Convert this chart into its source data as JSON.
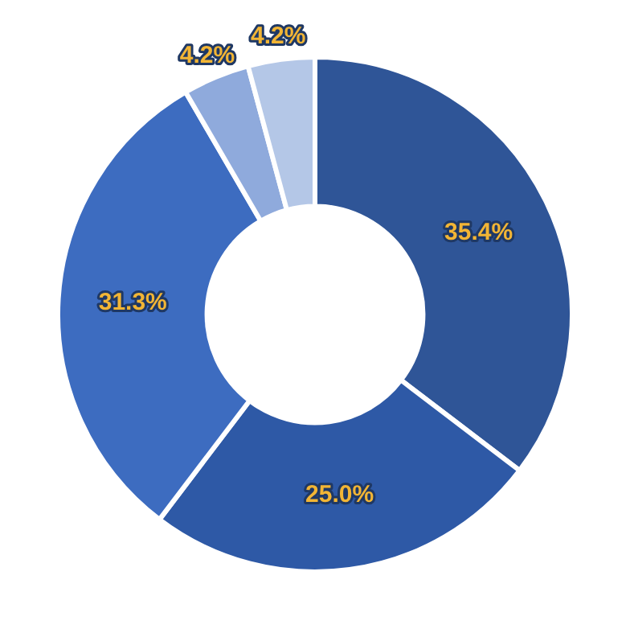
{
  "chart_data": {
    "type": "donut",
    "categories": [
      null,
      null,
      null,
      null,
      null
    ],
    "values": [
      35.4,
      25.0,
      31.3,
      4.2,
      4.2
    ],
    "colors": [
      "#2f5597",
      "#2e59a6",
      "#3d6cc0",
      "#8faadc",
      "#b4c7e7"
    ],
    "value_labels": [
      "35.4%",
      "25.0%",
      "31.3%",
      "4.2%",
      "4.2%"
    ],
    "legend": false
  }
}
